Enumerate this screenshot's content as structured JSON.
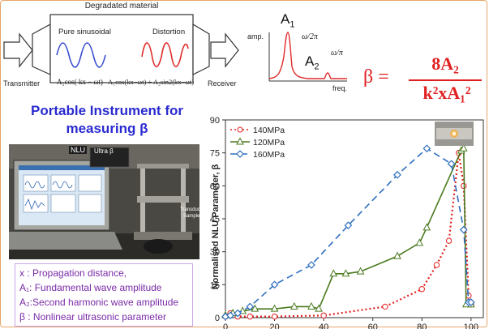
{
  "diagram": {
    "material_label": "Degradated material",
    "pure_label": "Pure sinusoidal",
    "distortion_label": "Distortion",
    "transmitter_label": "Transmitter",
    "receiver_label": "Receiver",
    "formula_pure": "A₁cos( kx − ωt)",
    "formula_distortion": "A₁cos(kx−ωt) + A₂sin2(kx−ωt)"
  },
  "spectrum": {
    "amp_label": "amp.",
    "freq_label": "freq.",
    "a1_label": "A",
    "a1_sub": "1",
    "a2_label": "A",
    "a2_sub": "2",
    "w1_label": "ω/2π",
    "w2_label": "ω/π"
  },
  "beta_formula": {
    "lhs": "β =",
    "numerator": "8A₂",
    "denominator": "k²xA₁²"
  },
  "instrument": {
    "title_line1": "Portable Instrument for",
    "title_line2": "measuring β",
    "ultra_label": "Ultra β",
    "nlu_label": "NLU",
    "transducer_label": "Transducer",
    "sample_label": "Sample"
  },
  "definitions": [
    "x : Propagation distance,",
    "A₁: Fundamental wave amplitude",
    "A₂:Second harmonic wave amplitude",
    "β : Nonlinear ultrasonic parameter"
  ],
  "chart_data": {
    "type": "line",
    "ylabel": "Normalised NLU Parameter, β",
    "xlabel": "",
    "ylim": [
      0,
      90
    ],
    "xlim": [
      0,
      105
    ],
    "yticks": [
      0,
      15,
      30,
      45,
      60,
      75,
      90
    ],
    "xticks": [
      0,
      20,
      40,
      60,
      80,
      100
    ],
    "xtick_labels": [
      "0",
      "20",
      "40",
      "60",
      "80",
      "100"
    ],
    "series": [
      {
        "name": "140MPa",
        "color": "#e0201e",
        "dash": "2,3",
        "marker": "circle",
        "x": [
          0,
          2,
          5,
          10,
          20,
          40,
          65,
          80,
          86,
          91,
          95,
          97,
          99,
          100
        ],
        "y": [
          0.5,
          2,
          0.5,
          0.5,
          0.5,
          1,
          5,
          13,
          24,
          35,
          75,
          60,
          10,
          6
        ]
      },
      {
        "name": "120MPa",
        "color": "#4a7a1e",
        "dash": "",
        "marker": "triangle",
        "x": [
          0,
          3,
          7,
          12,
          20,
          28,
          35,
          38,
          44,
          49,
          55,
          70,
          79,
          82,
          96,
          97,
          98,
          100
        ],
        "y": [
          1,
          2,
          3,
          4,
          4,
          5,
          5,
          4,
          20,
          20,
          21,
          28,
          34,
          41,
          76,
          77,
          6,
          6
        ]
      },
      {
        "name": "160MPa",
        "color": "#2e6fc0",
        "dash": "8,5",
        "marker": "diamond",
        "x": [
          0,
          2,
          5,
          10,
          20,
          35,
          50,
          70,
          82,
          92,
          97,
          99,
          100
        ],
        "y": [
          0.5,
          1,
          2,
          5,
          15,
          24,
          42,
          65,
          77,
          70,
          40,
          7,
          7
        ]
      }
    ]
  },
  "colors": {
    "pure_wave": "#3a4fd0",
    "distortion_wave": "#e02a2a",
    "beta_formula": "#e02020",
    "title_blue": "#2a2ad0",
    "legend_text": "#7a2aa8",
    "frame": "#e8a56a"
  }
}
